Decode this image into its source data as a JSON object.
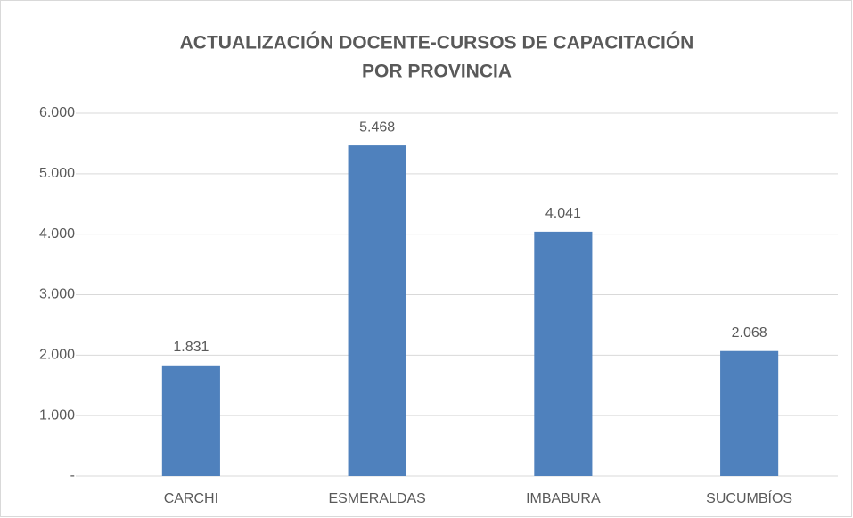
{
  "chart_data": {
    "type": "bar",
    "title": [
      "ACTUALIZACIÓN DOCENTE-CURSOS DE CAPACITACIÓN",
      "POR PROVINCIA"
    ],
    "categories": [
      "CARCHI",
      "ESMERALDAS",
      "IMBABURA",
      "SUCUMBÍOS"
    ],
    "values": [
      1831,
      5468,
      4041,
      2068
    ],
    "value_labels": [
      "1.831",
      "5.468",
      "4.041",
      "2.068"
    ],
    "color": "#4f81bd",
    "ylim": [
      0,
      6000
    ],
    "yticks": [
      {
        "value": 0,
        "label": "-"
      },
      {
        "value": 1000,
        "label": "1.000"
      },
      {
        "value": 2000,
        "label": "2.000"
      },
      {
        "value": 3000,
        "label": "3.000"
      },
      {
        "value": 4000,
        "label": "4.000"
      },
      {
        "value": 5000,
        "label": "5.000"
      },
      {
        "value": 6000,
        "label": "6.000"
      }
    ],
    "grid": true
  }
}
